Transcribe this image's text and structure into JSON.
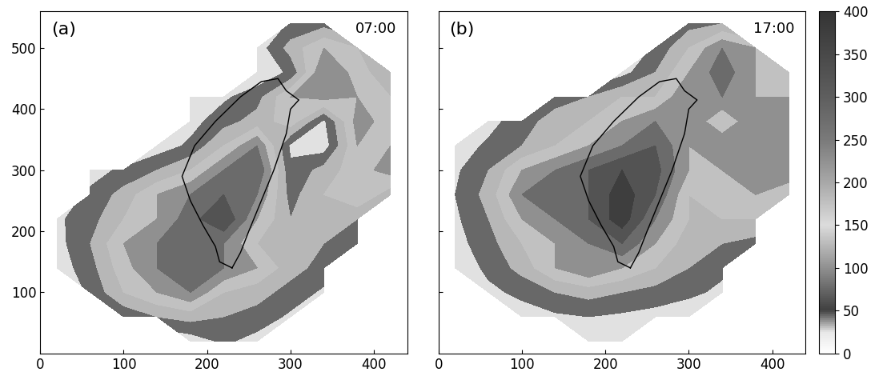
{
  "chart_data": [
    {
      "type": "heatmap",
      "panel": "(a)",
      "time": "07:00",
      "xlim": [
        0,
        440
      ],
      "ylim": [
        0,
        560
      ],
      "xticks": [
        0,
        100,
        200,
        300,
        400
      ],
      "yticks": [
        100,
        200,
        300,
        400,
        500
      ],
      "x": [
        20,
        60,
        100,
        140,
        180,
        220,
        260,
        300,
        340,
        380,
        420
      ],
      "y": [
        20,
        60,
        100,
        140,
        180,
        220,
        260,
        300,
        340,
        380,
        420,
        460,
        500,
        540
      ],
      "cells": [
        [
          null,
          null,
          null,
          null,
          20,
          60,
          30,
          null,
          null,
          null,
          null
        ],
        [
          null,
          null,
          60,
          100,
          120,
          100,
          80,
          40,
          null,
          null,
          null
        ],
        [
          null,
          60,
          150,
          200,
          250,
          150,
          120,
          80,
          40,
          null,
          null
        ],
        [
          20,
          80,
          180,
          250,
          280,
          250,
          200,
          120,
          80,
          null,
          null
        ],
        [
          30,
          100,
          200,
          250,
          300,
          250,
          150,
          150,
          100,
          60,
          null
        ],
        [
          40,
          80,
          150,
          200,
          280,
          350,
          200,
          100,
          150,
          100,
          null
        ],
        [
          null,
          60,
          120,
          200,
          250,
          300,
          250,
          80,
          150,
          200,
          120
        ],
        [
          null,
          30,
          60,
          100,
          150,
          250,
          300,
          60,
          120,
          180,
          220
        ],
        [
          null,
          null,
          null,
          20,
          60,
          150,
          250,
          40,
          20,
          200,
          200
        ],
        [
          null,
          null,
          null,
          null,
          30,
          80,
          120,
          180,
          40,
          220,
          180
        ],
        [
          null,
          null,
          null,
          null,
          50,
          40,
          80,
          200,
          220,
          200,
          150
        ],
        [
          null,
          null,
          null,
          null,
          null,
          null,
          10,
          60,
          250,
          180,
          100
        ],
        [
          null,
          null,
          null,
          null,
          null,
          null,
          20,
          120,
          200,
          150,
          null
        ],
        [
          null,
          null,
          null,
          null,
          null,
          null,
          null,
          60,
          80,
          null,
          null
        ]
      ],
      "outline": {
        "x": [
          230,
          215,
          210,
          195,
          180,
          170,
          185,
          210,
          240,
          265,
          285,
          295,
          310,
          300,
          295,
          280,
          265,
          250,
          240,
          230
        ],
        "y": [
          140,
          150,
          175,
          210,
          250,
          290,
          340,
          380,
          420,
          445,
          450,
          430,
          415,
          400,
          360,
          300,
          250,
          200,
          165,
          140
        ]
      }
    },
    {
      "type": "heatmap",
      "panel": "(b)",
      "time": "17:00",
      "tick_labels": "x",
      "xlim": [
        0,
        440
      ],
      "ylim": [
        0,
        560
      ],
      "xticks": [
        0,
        100,
        200,
        300,
        400
      ],
      "yticks": [
        100,
        200,
        300,
        400,
        500
      ],
      "x": [
        20,
        60,
        100,
        140,
        180,
        220,
        260,
        300,
        340,
        380,
        420
      ],
      "y": [
        20,
        60,
        100,
        140,
        180,
        220,
        260,
        300,
        340,
        380,
        420,
        460,
        500,
        540
      ],
      "cells": [
        [
          null,
          null,
          null,
          null,
          20,
          20,
          null,
          null,
          null,
          null,
          null
        ],
        [
          null,
          null,
          30,
          40,
          50,
          40,
          30,
          20,
          null,
          null,
          null
        ],
        [
          null,
          40,
          60,
          100,
          120,
          100,
          80,
          60,
          40,
          null,
          null
        ],
        [
          20,
          60,
          120,
          200,
          250,
          200,
          150,
          100,
          60,
          null,
          null
        ],
        [
          30,
          80,
          150,
          200,
          250,
          300,
          200,
          120,
          100,
          80,
          null
        ],
        [
          40,
          100,
          200,
          250,
          300,
          380,
          250,
          150,
          150,
          150,
          null
        ],
        [
          50,
          120,
          250,
          300,
          300,
          380,
          300,
          150,
          200,
          200,
          150
        ],
        [
          40,
          100,
          200,
          250,
          300,
          350,
          320,
          200,
          200,
          250,
          250
        ],
        [
          20,
          60,
          100,
          150,
          200,
          250,
          300,
          200,
          250,
          220,
          200
        ],
        [
          null,
          30,
          80,
          120,
          150,
          200,
          250,
          250,
          150,
          250,
          220
        ],
        [
          null,
          null,
          null,
          80,
          100,
          150,
          150,
          250,
          250,
          200,
          200
        ],
        [
          null,
          null,
          null,
          null,
          null,
          30,
          100,
          200,
          280,
          200,
          150
        ],
        [
          null,
          null,
          null,
          null,
          null,
          null,
          60,
          150,
          250,
          200,
          null
        ],
        [
          null,
          null,
          null,
          null,
          null,
          null,
          null,
          80,
          100,
          null,
          null
        ]
      ],
      "outline": {
        "x": [
          230,
          215,
          210,
          195,
          180,
          170,
          185,
          210,
          240,
          265,
          285,
          295,
          310,
          300,
          295,
          280,
          265,
          250,
          240,
          230
        ],
        "y": [
          140,
          150,
          175,
          210,
          250,
          290,
          340,
          380,
          420,
          445,
          450,
          430,
          415,
          400,
          360,
          300,
          250,
          200,
          165,
          140
        ]
      },
      "colorbar": {
        "range": [
          0,
          400
        ],
        "ticks": [
          0,
          50,
          100,
          150,
          200,
          250,
          300,
          350,
          400
        ]
      }
    }
  ]
}
